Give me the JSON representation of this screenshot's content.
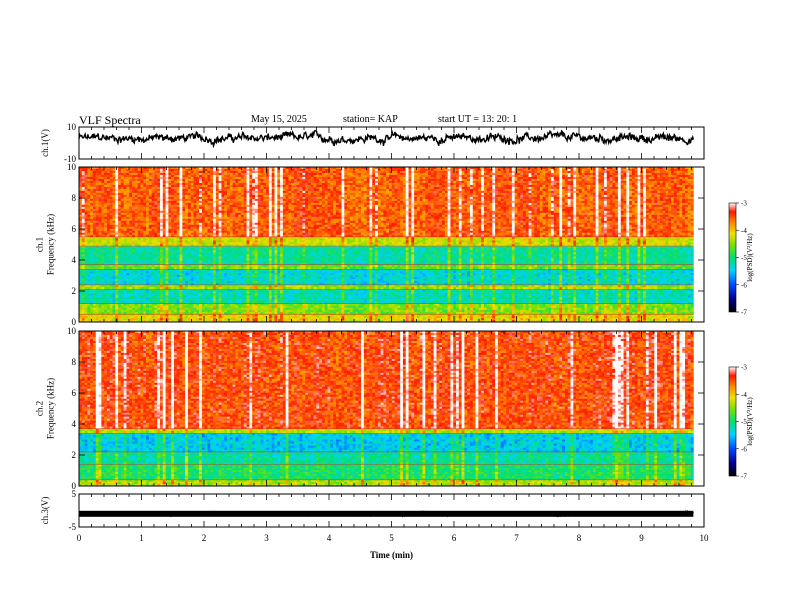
{
  "header": {
    "title": "VLF Spectra",
    "date": "May 15, 2025",
    "station": "station= KAP",
    "start": "start  UT  =  13: 20: 1"
  },
  "chart_data": [
    {
      "type": "line",
      "name": "ch1-waveform",
      "ylabel": "ch.1(V)",
      "ylim": [
        -10,
        10
      ],
      "yticks": [
        "10",
        "-10"
      ],
      "x_range_min": [
        0,
        9.83
      ],
      "level": 3,
      "amplitude": 3.5
    },
    {
      "type": "heatmap",
      "name": "ch1-spectrogram",
      "ylabel": "ch.1\nFrequency  (kHz)",
      "ylim": [
        0,
        10
      ],
      "yticks": [
        "0",
        "2",
        "4",
        "6",
        "8",
        "10"
      ],
      "x_range_min": [
        0,
        9.83
      ],
      "bands_khz": [
        {
          "from": 0.0,
          "to": 0.5,
          "level": -4.2
        },
        {
          "from": 0.5,
          "to": 1.2,
          "level": -4.6
        },
        {
          "from": 1.2,
          "to": 2.1,
          "level": -5.3
        },
        {
          "from": 2.1,
          "to": 2.4,
          "level": -4.5
        },
        {
          "from": 2.4,
          "to": 3.4,
          "level": -5.4
        },
        {
          "from": 3.4,
          "to": 3.7,
          "level": -4.7
        },
        {
          "from": 3.7,
          "to": 4.9,
          "level": -5.2
        },
        {
          "from": 4.9,
          "to": 5.5,
          "level": -4.3
        },
        {
          "from": 5.5,
          "to": 10.0,
          "level": -3.6
        }
      ],
      "colorbar": {
        "label": "log(PSD)(V²/Hz)",
        "range": [
          -7,
          -3
        ],
        "ticks": [
          "-3",
          "-4",
          "-5",
          "-6",
          "-7"
        ]
      }
    },
    {
      "type": "heatmap",
      "name": "ch2-spectrogram",
      "ylabel": "ch.2\nFrequency  (kHz)",
      "ylim": [
        0,
        10
      ],
      "yticks": [
        "0",
        "2",
        "4",
        "6",
        "8",
        "10"
      ],
      "x_range_min": [
        0,
        9.83
      ],
      "bands_khz": [
        {
          "from": 0.0,
          "to": 0.4,
          "level": -4.4
        },
        {
          "from": 0.4,
          "to": 1.4,
          "level": -5.0
        },
        {
          "from": 1.4,
          "to": 2.2,
          "level": -5.2
        },
        {
          "from": 2.2,
          "to": 3.4,
          "level": -5.5
        },
        {
          "from": 3.4,
          "to": 3.7,
          "level": -4.4
        },
        {
          "from": 3.7,
          "to": 10.0,
          "level": -3.5
        }
      ],
      "colorbar": {
        "label": "log(PSD)(V²/Hz)",
        "range": [
          -7,
          -3
        ],
        "ticks": [
          "-3",
          "-4",
          "-5",
          "-6",
          "-7"
        ]
      }
    },
    {
      "type": "line",
      "name": "ch3-waveform",
      "ylabel": "ch.3(V)",
      "ylim": [
        -5,
        5
      ],
      "yticks": [
        "5",
        "-5"
      ],
      "x_range_min": [
        0,
        9.83
      ],
      "level": -1,
      "amplitude": 0.6
    }
  ],
  "xaxis": {
    "label": "Time  (min)",
    "range": [
      0,
      10
    ],
    "ticks": [
      "0",
      "1",
      "2",
      "3",
      "4",
      "5",
      "6",
      "7",
      "8",
      "9",
      "10"
    ]
  }
}
